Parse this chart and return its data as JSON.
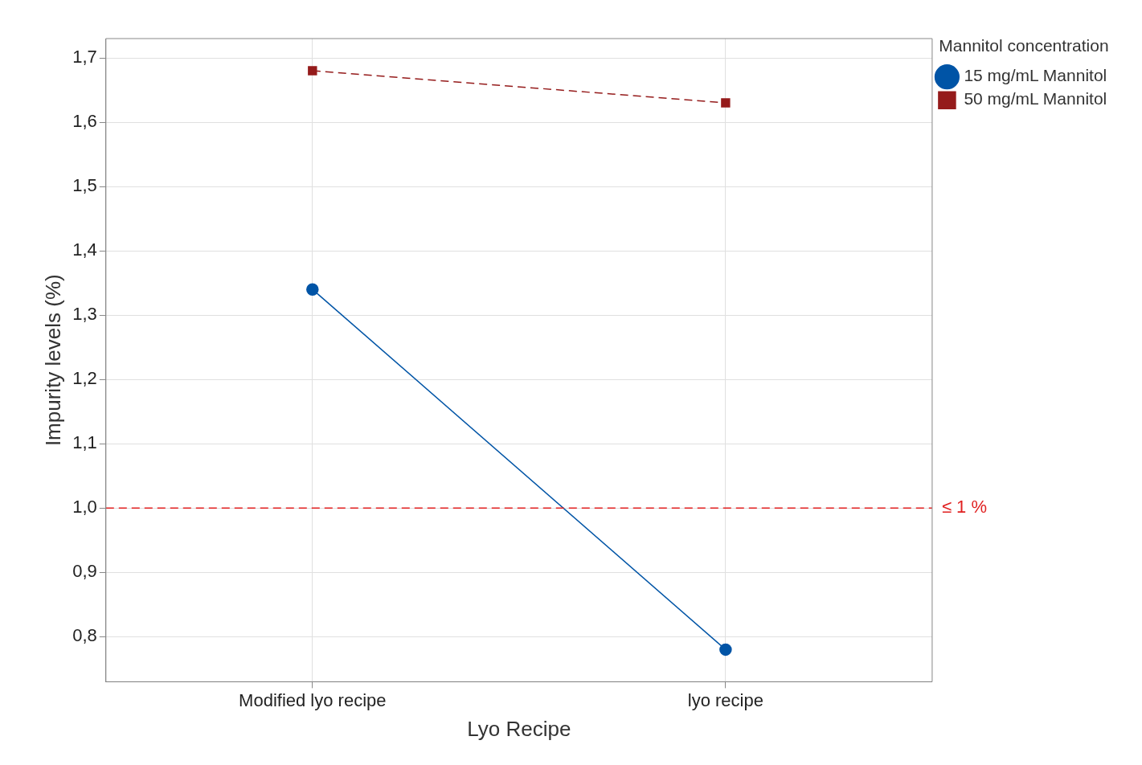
{
  "chart_data": {
    "type": "line",
    "xlabel": "Lyo Recipe",
    "ylabel": "Impurity levels (%)",
    "legend_title": "Mannitol concentration",
    "categories": [
      "Modified lyo recipe",
      "lyo recipe"
    ],
    "series": [
      {
        "name": "15 mg/mL Mannitol",
        "color": "#0054a6",
        "values": [
          1.34,
          0.78
        ],
        "marker": "circle",
        "line_style": "solid"
      },
      {
        "name": "50 mg/mL Mannitol",
        "color": "#951b1b",
        "values": [
          1.68,
          1.63
        ],
        "marker": "square",
        "line_style": "dashed"
      }
    ],
    "ylim": [
      0.73,
      1.73
    ],
    "yticks": [
      {
        "value": 0.8,
        "label": "0,8"
      },
      {
        "value": 0.9,
        "label": "0,9"
      },
      {
        "value": 1.0,
        "label": "1,0"
      },
      {
        "value": 1.1,
        "label": "1,1"
      },
      {
        "value": 1.2,
        "label": "1,2"
      },
      {
        "value": 1.3,
        "label": "1,3"
      },
      {
        "value": 1.4,
        "label": "1,4"
      },
      {
        "value": 1.5,
        "label": "1,5"
      },
      {
        "value": 1.6,
        "label": "1,6"
      },
      {
        "value": 1.7,
        "label": "1,7"
      }
    ],
    "ref_lines": [
      {
        "axis": "y",
        "value": 1.0,
        "label": "≤ 1 %",
        "color": "#e02020",
        "line_style": "dashed"
      }
    ],
    "grid": true,
    "legend": "top right"
  }
}
